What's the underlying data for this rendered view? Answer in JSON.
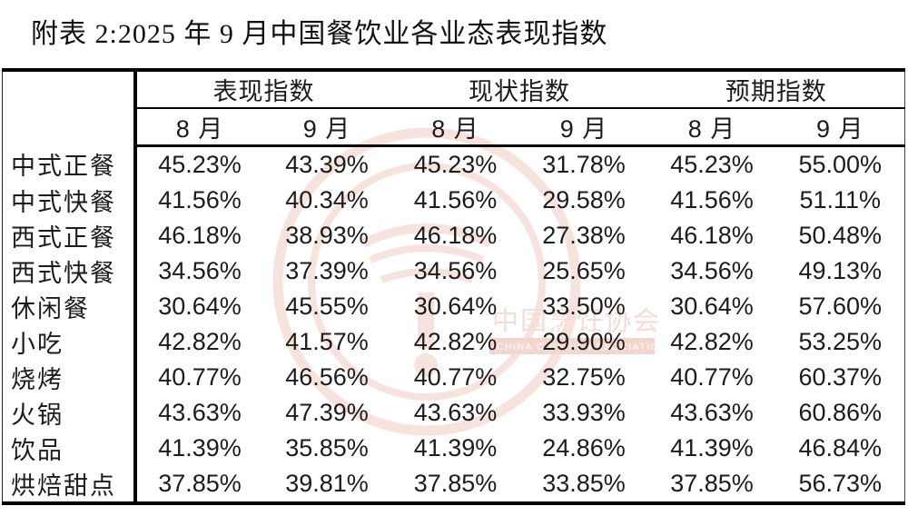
{
  "title": "附表 2:2025 年 9 月中国餐饮业各业态表现指数",
  "table": {
    "corner_label": "",
    "groups": [
      {
        "label": "表现指数"
      },
      {
        "label": "现状指数"
      },
      {
        "label": "预期指数"
      }
    ],
    "months": [
      "8 月",
      "9 月",
      "8 月",
      "9 月",
      "8 月",
      "9 月"
    ],
    "rows": [
      {
        "label": "中式正餐",
        "values": [
          "45.23%",
          "43.39%",
          "45.23%",
          "31.78%",
          "45.23%",
          "55.00%"
        ]
      },
      {
        "label": "中式快餐",
        "values": [
          "41.56%",
          "40.34%",
          "41.56%",
          "29.58%",
          "41.56%",
          "51.11%"
        ]
      },
      {
        "label": "西式正餐",
        "values": [
          "46.18%",
          "38.93%",
          "46.18%",
          "27.38%",
          "46.18%",
          "50.48%"
        ]
      },
      {
        "label": "西式快餐",
        "values": [
          "34.56%",
          "37.39%",
          "34.56%",
          "25.65%",
          "34.56%",
          "49.13%"
        ]
      },
      {
        "label": "休闲餐",
        "values": [
          "30.64%",
          "45.55%",
          "30.64%",
          "33.50%",
          "30.64%",
          "57.60%"
        ]
      },
      {
        "label": "小吃",
        "values": [
          "42.82%",
          "41.57%",
          "42.82%",
          "29.90%",
          "42.82%",
          "53.25%"
        ]
      },
      {
        "label": "烧烤",
        "values": [
          "40.77%",
          "46.56%",
          "40.77%",
          "32.75%",
          "40.77%",
          "60.37%"
        ]
      },
      {
        "label": "火锅",
        "values": [
          "43.63%",
          "47.39%",
          "43.63%",
          "33.93%",
          "43.63%",
          "60.86%"
        ]
      },
      {
        "label": "饮品",
        "values": [
          "41.39%",
          "35.85%",
          "41.39%",
          "24.86%",
          "41.39%",
          "46.84%"
        ]
      },
      {
        "label": "烘焙甜点",
        "values": [
          "37.85%",
          "39.81%",
          "37.85%",
          "33.85%",
          "37.85%",
          "56.73%"
        ]
      }
    ]
  },
  "watermark": {
    "cn_text": "中国烹饪协会",
    "en_text": "CHINA CUISINE ASSOCIATION",
    "ring_color": "#f3d2c8",
    "text_color": "#efc5b9",
    "band_color": "#ecbcae",
    "band_text_color": "#ffffff"
  },
  "colors": {
    "text": "#1c1c1c",
    "border": "#000000",
    "background": "#ffffff"
  }
}
